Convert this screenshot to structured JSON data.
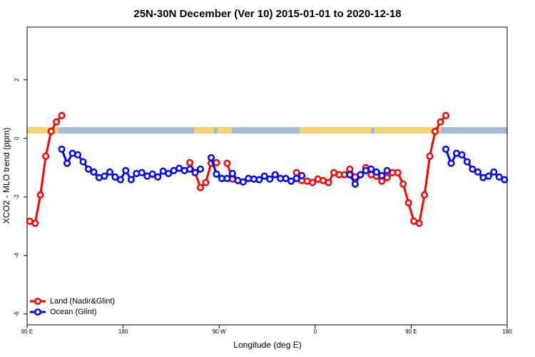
{
  "chart_data": {
    "type": "line",
    "title": "25N-30N December (Ver 10)   2015-01-01 to 2020-12-18",
    "x_label": "Longitude (deg E)",
    "y_label": "XCO2 - MLO trend (ppm)",
    "xlim": [
      90,
      540
    ],
    "xticks": [
      {
        "value": 90,
        "label": "90 E"
      },
      {
        "value": 180,
        "label": "180"
      },
      {
        "value": 270,
        "label": "90 W"
      },
      {
        "value": 360,
        "label": "0"
      },
      {
        "value": 450,
        "label": "90 E"
      },
      {
        "value": 540,
        "label": "180"
      }
    ],
    "ylim": [
      -6.37,
      3.8
    ],
    "yticks": [
      2,
      0,
      -2,
      -4,
      -6
    ],
    "legend": "bottom-left",
    "series": [
      {
        "name": "Land (Nadir&Glint)",
        "color": "#ff0000",
        "x": [
          92.5,
          97.5,
          102.5,
          107.5,
          112.5,
          117.5,
          122.5,
          127.5,
          242.5,
          247.5,
          252.5,
          257.5,
          262.5,
          267.5,
          272.5,
          277.5,
          282.5,
          287.5,
          342.5,
          347.5,
          352.5,
          357.5,
          362.5,
          367.5,
          372.5,
          377.5,
          382.5,
          387.5,
          392.5,
          397.5,
          402.5,
          407.5,
          412.5,
          417.5,
          422.5,
          427.5,
          432.5,
          437.5,
          442.5,
          447.5,
          452.5,
          457.5,
          462.5,
          467.5,
          472.5,
          477.5,
          482.5
        ],
        "values": [
          -2.83,
          -2.9,
          -1.93,
          -0.61,
          0.24,
          0.56,
          0.78,
          null,
          -0.83,
          -1.17,
          -1.68,
          -1.51,
          -0.85,
          -0.83,
          null,
          -0.85,
          -1.39,
          null,
          -1.17,
          -1.44,
          -1.46,
          -1.51,
          -1.39,
          -1.44,
          -1.51,
          -1.17,
          -1.24,
          -1.24,
          -1.05,
          -1.32,
          -1.24,
          -1.0,
          -1.24,
          -1.29,
          -1.46,
          -1.34,
          -1.17,
          -1.17,
          -1.56,
          -2.2,
          -2.83,
          -2.9,
          -1.93,
          -0.61,
          0.24,
          0.56,
          0.78
        ]
      },
      {
        "name": "Ocean (Glint)",
        "color": "#0000ff",
        "x": [
          122.5,
          127.5,
          132.5,
          137.5,
          142.5,
          147.5,
          152.5,
          157.5,
          162.5,
          167.5,
          172.5,
          177.5,
          182.5,
          187.5,
          192.5,
          197.5,
          202.5,
          207.5,
          212.5,
          217.5,
          222.5,
          227.5,
          232.5,
          237.5,
          242.5,
          247.5,
          252.5,
          257.5,
          262.5,
          267.5,
          272.5,
          277.5,
          282.5,
          287.5,
          292.5,
          297.5,
          302.5,
          307.5,
          312.5,
          317.5,
          322.5,
          327.5,
          332.5,
          337.5,
          342.5,
          347.5,
          352.5,
          392.5,
          397.5,
          402.5,
          407.5,
          412.5,
          417.5,
          422.5,
          427.5,
          432.5,
          482.5,
          487.5,
          492.5,
          497.5,
          502.5,
          507.5,
          512.5,
          517.5,
          522.5,
          527.5,
          532.5,
          537.5
        ],
        "values": [
          -0.37,
          -0.85,
          -0.51,
          -0.56,
          -0.8,
          -1.05,
          -1.15,
          -1.34,
          -1.29,
          -1.15,
          -1.32,
          -1.41,
          -1.1,
          -1.41,
          -1.2,
          -1.17,
          -1.29,
          -1.22,
          -1.32,
          -1.12,
          -1.2,
          -1.1,
          -1.02,
          -1.1,
          -1.05,
          -1.17,
          -1.05,
          null,
          -0.66,
          -1.22,
          -1.37,
          -1.37,
          -1.2,
          -1.44,
          -1.49,
          -1.37,
          -1.39,
          -1.41,
          -1.29,
          -1.39,
          -1.24,
          -1.37,
          -1.37,
          -1.46,
          -1.37,
          -1.27,
          null,
          -1.24,
          -1.56,
          -1.24,
          -1.1,
          -1.05,
          -1.15,
          -1.27,
          -1.1,
          null,
          -0.37,
          -0.85,
          -0.51,
          -0.56,
          -0.8,
          -1.05,
          -1.15,
          -1.34,
          -1.29,
          -1.15,
          -1.32,
          -1.41
        ]
      }
    ]
  }
}
